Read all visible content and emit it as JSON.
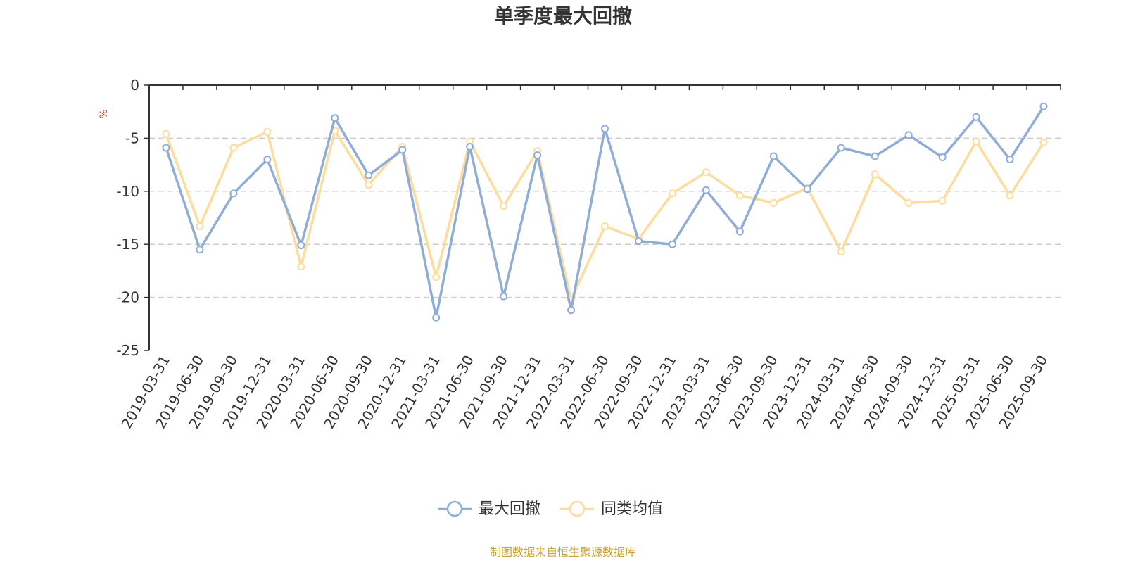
{
  "title": "单季度最大回撤",
  "source_note": "制图数据来自恒生聚源数据库",
  "colors": {
    "series_0": "#8fadd8",
    "series_1": "#fddc9c",
    "axis": "#333333",
    "grid": "#cccccc",
    "unit": "#e03030",
    "source": "#c9a032"
  },
  "chart_data": {
    "type": "line",
    "title": "单季度最大回撤",
    "xlabel": "",
    "ylabel": "%",
    "ylim": [
      -25,
      0
    ],
    "yticks": [
      0,
      -5,
      -10,
      -15,
      -20,
      -25
    ],
    "grid": true,
    "legend_position": "bottom-center",
    "categories": [
      "2019-03-31",
      "2019-06-30",
      "2019-09-30",
      "2019-12-31",
      "2020-03-31",
      "2020-06-30",
      "2020-09-30",
      "2020-12-31",
      "2021-03-31",
      "2021-06-30",
      "2021-09-30",
      "2021-12-31",
      "2022-03-31",
      "2022-06-30",
      "2022-09-30",
      "2022-12-31",
      "2023-03-31",
      "2023-06-30",
      "2023-09-30",
      "2023-12-31",
      "2024-03-31",
      "2024-06-30",
      "2024-09-30",
      "2024-12-31",
      "2025-03-31",
      "2025-06-30",
      "2025-09-30"
    ],
    "series": [
      {
        "name": "最大回撤",
        "values": [
          -5.9,
          -15.5,
          -10.2,
          -7.0,
          -15.1,
          -3.1,
          -8.5,
          -6.1,
          -21.9,
          -5.8,
          -19.9,
          -6.6,
          -21.2,
          -4.1,
          -14.7,
          -15.0,
          -9.9,
          -13.8,
          -6.7,
          -9.8,
          -5.9,
          -6.7,
          -4.7,
          -6.8,
          -3.0,
          -7.0,
          -2.0
        ]
      },
      {
        "name": "同类均值",
        "values": [
          -4.6,
          -13.3,
          -5.9,
          -4.4,
          -17.1,
          -4.3,
          -9.4,
          -5.8,
          -18.1,
          -5.3,
          -11.4,
          -6.2,
          -20.2,
          -13.3,
          -14.5,
          -10.2,
          -8.2,
          -10.4,
          -11.1,
          -9.7,
          -15.7,
          -8.4,
          -11.1,
          -10.9,
          -5.3,
          -10.4,
          -5.4
        ]
      }
    ]
  }
}
